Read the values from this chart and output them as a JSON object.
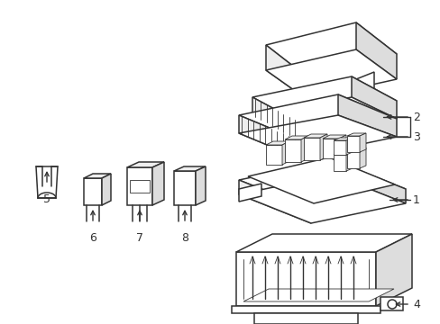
{
  "line_color": "#333333",
  "lw": 1.1,
  "thin_lw": 0.6,
  "fill_white": "#ffffff",
  "fill_light": "#eeeeee",
  "fill_mid": "#dddddd",
  "figsize": [
    4.89,
    3.6
  ],
  "dpi": 100
}
